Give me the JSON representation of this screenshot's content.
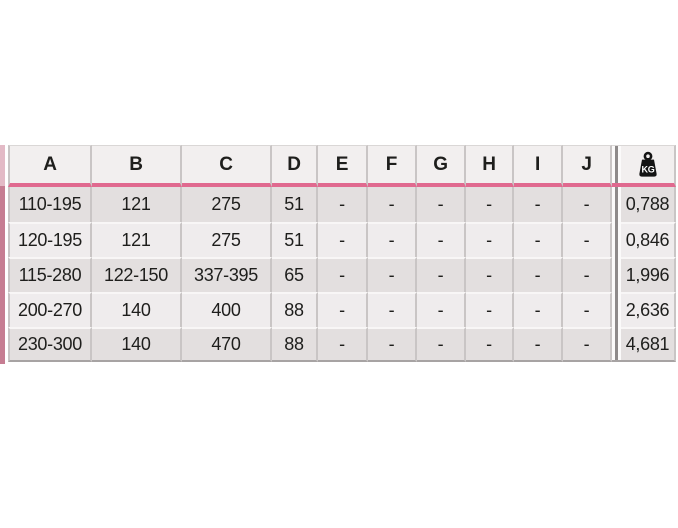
{
  "table": {
    "headers": [
      "A",
      "B",
      "C",
      "D",
      "E",
      "F",
      "G",
      "H",
      "I",
      "J"
    ],
    "weight_header": {
      "icon": "kg-weight-icon",
      "icon_label": "KG"
    },
    "rows": [
      [
        "110-195",
        "121",
        "275",
        "51",
        "-",
        "-",
        "-",
        "-",
        "-",
        "-",
        "0,788"
      ],
      [
        "120-195",
        "121",
        "275",
        "51",
        "-",
        "-",
        "-",
        "-",
        "-",
        "-",
        "0,846"
      ],
      [
        "115-280",
        "122-150",
        "337-395",
        "65",
        "-",
        "-",
        "-",
        "-",
        "-",
        "-",
        "1,996"
      ],
      [
        "200-270",
        "140",
        "400",
        "88",
        "-",
        "-",
        "-",
        "-",
        "-",
        "-",
        "2,636"
      ],
      [
        "230-300",
        "140",
        "470",
        "88",
        "-",
        "-",
        "-",
        "-",
        "-",
        "-",
        "4,681"
      ]
    ],
    "colors": {
      "accent_pink": "#e0698f",
      "left_bar": "#c67d92",
      "left_bar_top": "#e3bac6",
      "header_bg": "#f2efef",
      "row_odd": "#e3dfdf",
      "row_even": "#efeced",
      "border_light": "#c9c5c5",
      "border_row": "#f8f6f6",
      "border_top": "#dad7d6",
      "border_bottom": "#a7a3a3",
      "separator_dark": "#8e8a8a",
      "text": "#1e1e1c",
      "icon_black": "#141414"
    }
  }
}
